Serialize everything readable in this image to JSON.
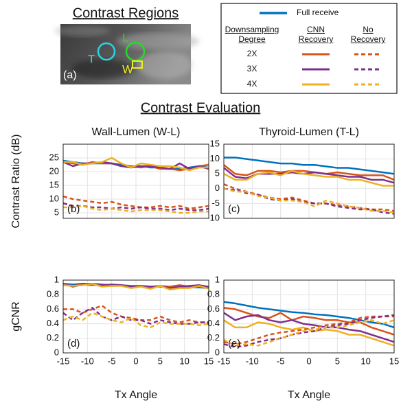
{
  "regions": {
    "title": "Contrast Regions",
    "labels": [
      "T",
      "L",
      "W"
    ],
    "label_colors": [
      "#2ad4e6",
      "#22dd22",
      "#eeee22"
    ],
    "panel_label": "(a)"
  },
  "legend": {
    "full_receive": {
      "label": "Full receive",
      "color": "#0072bd"
    },
    "degree_header": "Downsampling Degree",
    "cnn_header": "CNN Recovery",
    "none_header": "No Recovery",
    "rows": [
      {
        "label": "2X",
        "color": "#d95319"
      },
      {
        "label": "3X",
        "color": "#7e2f8e"
      },
      {
        "label": "4X",
        "color": "#edb120"
      }
    ]
  },
  "section_title": "Contrast Evaluation",
  "chart_data": [
    {
      "type": "line",
      "title": "Wall-Lumen (W-L)",
      "ylabel": "Contrast Ratio (dB)",
      "panel_label": "(b)",
      "show_xtick_labels": false,
      "x": [
        -15,
        -13,
        -11,
        -9,
        -7,
        -5,
        -3,
        -1,
        1,
        3,
        5,
        7,
        9,
        11,
        13,
        15
      ],
      "xlim": [
        -15,
        15
      ],
      "xticks": [
        -15,
        -10,
        -5,
        0,
        5,
        10,
        15
      ],
      "ylim": [
        3,
        30
      ],
      "yticks": [
        5,
        10,
        15,
        20,
        25
      ],
      "grid": true,
      "series": [
        {
          "color": "#0072bd",
          "dash": false,
          "values": [
            24,
            23.5,
            23,
            23,
            23,
            23,
            22.5,
            22,
            22,
            21.5,
            21.5,
            21,
            21,
            21.5,
            22,
            21.5
          ]
        },
        {
          "color": "#d95319",
          "dash": false,
          "values": [
            23.5,
            23,
            22.5,
            23.5,
            23,
            23,
            22,
            22,
            21.5,
            22,
            21,
            21,
            20.5,
            21,
            22,
            22.5
          ]
        },
        {
          "color": "#7e2f8e",
          "dash": false,
          "values": [
            23.5,
            22,
            23,
            23,
            23.5,
            23,
            22,
            21.5,
            22,
            22,
            21.5,
            21,
            23,
            21,
            22,
            21
          ]
        },
        {
          "color": "#edb120",
          "dash": false,
          "values": [
            23.5,
            23.5,
            22.5,
            23,
            23.5,
            25,
            23,
            21.5,
            23,
            22.5,
            22,
            22,
            21.5,
            20.5,
            21.5,
            21.5
          ]
        },
        {
          "color": "#d95319",
          "dash": true,
          "values": [
            11,
            10,
            9.5,
            9,
            8.5,
            9,
            8,
            7.5,
            7,
            7,
            7.5,
            7,
            7.5,
            6.5,
            7,
            7.5
          ]
        },
        {
          "color": "#7e2f8e",
          "dash": true,
          "values": [
            8.5,
            7.5,
            7.5,
            7,
            7,
            6.5,
            7,
            6.5,
            7,
            6.5,
            6.5,
            6,
            6.5,
            6,
            6,
            6.5
          ]
        },
        {
          "color": "#edb120",
          "dash": true,
          "values": [
            7,
            7,
            7.5,
            6.5,
            6,
            6.5,
            6,
            5.5,
            6,
            6,
            6,
            5.5,
            5,
            5,
            5.5,
            5.5
          ]
        }
      ]
    },
    {
      "type": "line",
      "title": "Thyroid-Lumen (T-L)",
      "panel_label": "(c)",
      "show_xtick_labels": false,
      "x": [
        -15,
        -13,
        -11,
        -9,
        -7,
        -5,
        -3,
        -1,
        1,
        3,
        5,
        7,
        9,
        11,
        13,
        15
      ],
      "xlim": [
        -15,
        15
      ],
      "xticks": [
        -15,
        -10,
        -5,
        0,
        5,
        10,
        15
      ],
      "ylim": [
        -10,
        15
      ],
      "yticks": [
        -10,
        -5,
        0,
        5,
        10,
        15
      ],
      "grid": true,
      "series": [
        {
          "color": "#0072bd",
          "dash": false,
          "values": [
            10.5,
            10.5,
            10,
            9.5,
            9,
            8.5,
            8.5,
            8,
            8,
            7.5,
            7,
            7,
            6.5,
            6,
            5.5,
            5
          ]
        },
        {
          "color": "#d95319",
          "dash": false,
          "values": [
            8,
            5,
            4.5,
            6,
            6,
            5.5,
            6,
            6,
            5.5,
            5,
            5.5,
            5,
            4.5,
            4.5,
            4.5,
            3
          ]
        },
        {
          "color": "#7e2f8e",
          "dash": false,
          "values": [
            7,
            4,
            3.5,
            5,
            5,
            5,
            5.5,
            5,
            5.5,
            5,
            4.5,
            4,
            4,
            3,
            3,
            2
          ]
        },
        {
          "color": "#edb120",
          "dash": false,
          "values": [
            5,
            3,
            3,
            5,
            5.5,
            4.5,
            6,
            5,
            4.5,
            4,
            4,
            3,
            3,
            2,
            1,
            1
          ]
        },
        {
          "color": "#d95319",
          "dash": true,
          "values": [
            1.5,
            0,
            -1,
            -2,
            -3,
            -3.5,
            -3,
            -4,
            -5,
            -5,
            -5.5,
            -6,
            -6.5,
            -7,
            -7,
            -7.5
          ]
        },
        {
          "color": "#7e2f8e",
          "dash": true,
          "values": [
            0,
            -0.5,
            -1.5,
            -2,
            -3.5,
            -4,
            -3.5,
            -4.5,
            -5,
            -5,
            -6,
            -6.5,
            -7,
            -7,
            -8,
            -8.5
          ]
        },
        {
          "color": "#edb120",
          "dash": true,
          "values": [
            0,
            -1,
            -1,
            -2.5,
            -3,
            -4,
            -4,
            -4.5,
            -6,
            -4,
            -5,
            -6,
            -6.5,
            -7.5,
            -7.5,
            -8
          ]
        }
      ]
    },
    {
      "type": "line",
      "ylabel": "gCNR",
      "xlabel": "Tx Angle",
      "panel_label": "(d)",
      "show_xtick_labels": true,
      "x": [
        -15,
        -13,
        -11,
        -9,
        -7,
        -5,
        -3,
        -1,
        1,
        3,
        5,
        7,
        9,
        11,
        13,
        15
      ],
      "xlim": [
        -15,
        15
      ],
      "xticks": [
        -15,
        -10,
        -5,
        0,
        5,
        10,
        15
      ],
      "ylim": [
        0,
        1
      ],
      "yticks": [
        0,
        0.2,
        0.4,
        0.6,
        0.8,
        1
      ],
      "grid": true,
      "series": [
        {
          "color": "#0072bd",
          "dash": false,
          "values": [
            0.95,
            0.94,
            0.95,
            0.95,
            0.94,
            0.93,
            0.93,
            0.92,
            0.92,
            0.91,
            0.91,
            0.9,
            0.9,
            0.9,
            0.9,
            0.89
          ]
        },
        {
          "color": "#d95319",
          "dash": false,
          "values": [
            0.94,
            0.92,
            0.94,
            0.93,
            0.94,
            0.92,
            0.93,
            0.91,
            0.92,
            0.9,
            0.92,
            0.91,
            0.93,
            0.91,
            0.93,
            0.91
          ]
        },
        {
          "color": "#7e2f8e",
          "dash": false,
          "values": [
            0.95,
            0.91,
            0.94,
            0.95,
            0.93,
            0.94,
            0.93,
            0.91,
            0.92,
            0.91,
            0.92,
            0.89,
            0.91,
            0.92,
            0.93,
            0.9
          ]
        },
        {
          "color": "#edb120",
          "dash": false,
          "values": [
            0.93,
            0.92,
            0.93,
            0.95,
            0.91,
            0.92,
            0.92,
            0.89,
            0.91,
            0.88,
            0.92,
            0.87,
            0.89,
            0.89,
            0.92,
            0.88
          ]
        },
        {
          "color": "#d95319",
          "dash": true,
          "values": [
            0.6,
            0.6,
            0.55,
            0.6,
            0.65,
            0.55,
            0.5,
            0.48,
            0.45,
            0.45,
            0.5,
            0.45,
            0.42,
            0.45,
            0.42,
            0.42
          ]
        },
        {
          "color": "#7e2f8e",
          "dash": true,
          "values": [
            0.55,
            0.45,
            0.55,
            0.62,
            0.5,
            0.45,
            0.5,
            0.45,
            0.45,
            0.4,
            0.45,
            0.42,
            0.4,
            0.4,
            0.42,
            0.42
          ]
        },
        {
          "color": "#edb120",
          "dash": true,
          "values": [
            0.45,
            0.5,
            0.45,
            0.55,
            0.5,
            0.45,
            0.42,
            0.48,
            0.38,
            0.35,
            0.42,
            0.4,
            0.4,
            0.4,
            0.38,
            0.4
          ]
        }
      ]
    },
    {
      "type": "line",
      "xlabel": "Tx Angle",
      "panel_label": "(e)",
      "show_xtick_labels": true,
      "x": [
        -15,
        -13,
        -11,
        -9,
        -7,
        -5,
        -3,
        -1,
        1,
        3,
        5,
        7,
        9,
        11,
        13,
        15
      ],
      "xlim": [
        -15,
        15
      ],
      "xticks": [
        -15,
        -10,
        -5,
        0,
        5,
        10,
        15
      ],
      "ylim": [
        0,
        1
      ],
      "yticks": [
        0,
        0.2,
        0.4,
        0.6,
        0.8,
        1
      ],
      "grid": true,
      "series": [
        {
          "color": "#0072bd",
          "dash": false,
          "values": [
            0.7,
            0.68,
            0.65,
            0.62,
            0.6,
            0.58,
            0.56,
            0.55,
            0.53,
            0.52,
            0.5,
            0.48,
            0.45,
            0.42,
            0.4,
            0.35
          ]
        },
        {
          "color": "#d95319",
          "dash": false,
          "values": [
            0.62,
            0.6,
            0.55,
            0.5,
            0.48,
            0.55,
            0.45,
            0.5,
            0.48,
            0.45,
            0.45,
            0.42,
            0.42,
            0.35,
            0.3,
            0.25
          ]
        },
        {
          "color": "#7e2f8e",
          "dash": false,
          "values": [
            0.55,
            0.45,
            0.5,
            0.52,
            0.45,
            0.42,
            0.45,
            0.4,
            0.38,
            0.35,
            0.35,
            0.32,
            0.3,
            0.25,
            0.2,
            0.15
          ]
        },
        {
          "color": "#edb120",
          "dash": false,
          "values": [
            0.45,
            0.35,
            0.35,
            0.42,
            0.4,
            0.35,
            0.32,
            0.35,
            0.3,
            0.32,
            0.3,
            0.25,
            0.25,
            0.2,
            0.15,
            0.1
          ]
        },
        {
          "color": "#d95319",
          "dash": true,
          "values": [
            0.15,
            0.12,
            0.15,
            0.2,
            0.25,
            0.28,
            0.3,
            0.32,
            0.35,
            0.38,
            0.4,
            0.42,
            0.48,
            0.5,
            0.5,
            0.5
          ]
        },
        {
          "color": "#7e2f8e",
          "dash": true,
          "values": [
            0.12,
            0.08,
            0.1,
            0.15,
            0.18,
            0.2,
            0.25,
            0.28,
            0.3,
            0.35,
            0.38,
            0.4,
            0.45,
            0.48,
            0.5,
            0.52
          ]
        },
        {
          "color": "#edb120",
          "dash": true,
          "values": [
            0.18,
            0.1,
            0.12,
            0.1,
            0.15,
            0.2,
            0.25,
            0.3,
            0.32,
            0.35,
            0.35,
            0.38,
            0.42,
            0.45,
            0.4,
            0.45
          ]
        }
      ]
    }
  ]
}
